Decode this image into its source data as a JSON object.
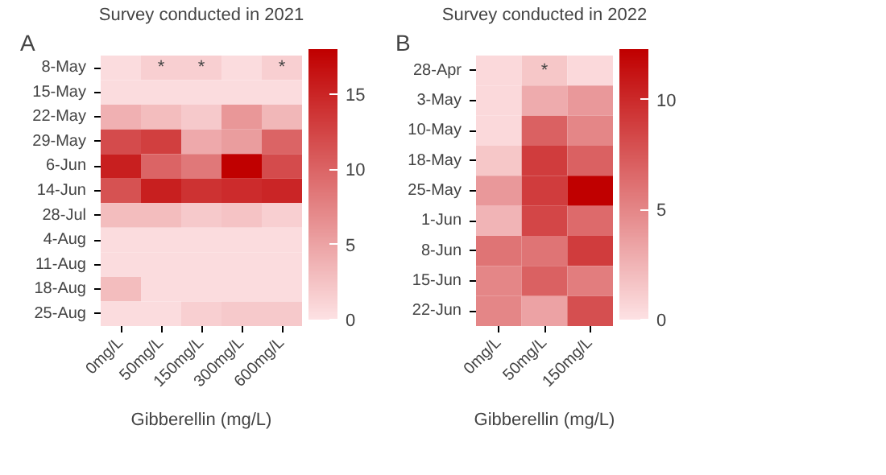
{
  "chart_data": [
    {
      "type": "heatmap",
      "title": "Survey conducted in 2021",
      "xlabel": "Gibberellin (mg/L)",
      "categories": [
        "0mg/L",
        "50mg/L",
        "150mg/L",
        "300mg/L",
        "600mg/L"
      ],
      "y_categories": [
        "8-May",
        "15-May",
        "22-May",
        "29-May",
        "6-Jun",
        "14-Jun",
        "28-Jul",
        "4-Aug",
        "11-Aug",
        "18-Aug",
        "25-Aug"
      ],
      "cells": [
        [
          0.5,
          1.5,
          1.5,
          0.5,
          1.5
        ],
        [
          0.5,
          0.5,
          0.5,
          0.5,
          0.5
        ],
        [
          4,
          3,
          2,
          6,
          3.5
        ],
        [
          12,
          13,
          4.5,
          5.5,
          10
        ],
        [
          15.5,
          10,
          8.5,
          18,
          12
        ],
        [
          11.5,
          15.5,
          14,
          14.5,
          15
        ],
        [
          3,
          3,
          2,
          2.5,
          1.5
        ],
        [
          0.5,
          0.5,
          0.5,
          0.5,
          0.5
        ],
        [
          0.5,
          0.5,
          0.5,
          0.5,
          0.5
        ],
        [
          3,
          0.5,
          0.5,
          0.5,
          0.5
        ],
        [
          0.5,
          0.5,
          1.5,
          2,
          2
        ]
      ],
      "clim": [
        0,
        18
      ],
      "cticks": [
        0,
        5,
        10,
        15
      ],
      "cell_labels": [
        [
          null,
          "*",
          "*",
          null,
          "*"
        ],
        [
          null,
          null,
          null,
          null,
          null
        ],
        [
          null,
          null,
          null,
          null,
          null
        ],
        [
          null,
          null,
          null,
          null,
          null
        ],
        [
          null,
          null,
          null,
          null,
          null
        ],
        [
          null,
          null,
          null,
          null,
          null
        ],
        [
          null,
          null,
          null,
          null,
          null
        ],
        [
          null,
          null,
          null,
          null,
          null
        ],
        [
          null,
          null,
          null,
          null,
          null
        ],
        [
          null,
          null,
          null,
          null,
          null
        ],
        [
          null,
          null,
          null,
          null,
          null
        ]
      ],
      "annotations": [
        "A"
      ]
    },
    {
      "type": "heatmap",
      "title": "Survey conducted in 2022",
      "xlabel": "Gibberellin (mg/L)",
      "categories": [
        "0mg/L",
        "50mg/L",
        "150mg/L"
      ],
      "y_categories": [
        "28-Apr",
        "3-May",
        "10-May",
        "18-May",
        "25-May",
        "1-Jun",
        "8-Jun",
        "15-Jun",
        "22-Jun"
      ],
      "cells": [
        [
          0.5,
          1.5,
          0.5
        ],
        [
          0.5,
          3,
          4
        ],
        [
          0.5,
          7,
          5
        ],
        [
          1.5,
          9,
          7
        ],
        [
          4,
          9,
          12.3
        ],
        [
          2.5,
          8.5,
          6.5
        ],
        [
          6,
          6,
          9
        ],
        [
          5,
          7,
          5.5
        ],
        [
          5,
          3.5,
          8
        ]
      ],
      "clim": [
        0,
        12.3
      ],
      "cticks": [
        0,
        5,
        10
      ],
      "cell_labels": [
        [
          null,
          "*",
          null
        ],
        [
          null,
          null,
          null
        ],
        [
          null,
          null,
          null
        ],
        [
          null,
          null,
          null
        ],
        [
          null,
          null,
          null
        ],
        [
          null,
          null,
          null
        ],
        [
          null,
          null,
          null
        ],
        [
          null,
          null,
          null
        ],
        [
          null,
          null,
          null
        ]
      ],
      "annotations": [
        "B"
      ]
    }
  ]
}
